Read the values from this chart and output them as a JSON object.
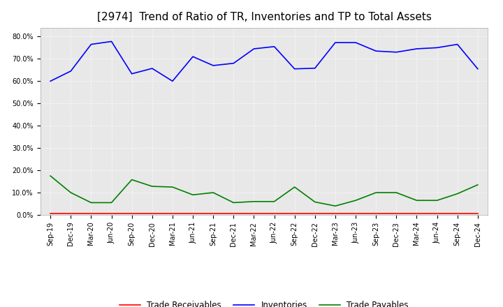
{
  "title": "[2974]  Trend of Ratio of TR, Inventories and TP to Total Assets",
  "x_labels": [
    "Sep-19",
    "Dec-19",
    "Mar-20",
    "Jun-20",
    "Sep-20",
    "Dec-20",
    "Mar-21",
    "Jun-21",
    "Sep-21",
    "Dec-21",
    "Mar-22",
    "Jun-22",
    "Sep-22",
    "Dec-22",
    "Mar-23",
    "Jun-23",
    "Sep-23",
    "Dec-23",
    "Mar-24",
    "Jun-24",
    "Sep-24",
    "Dec-24"
  ],
  "trade_receivables": [
    0.005,
    0.005,
    0.005,
    0.005,
    0.005,
    0.005,
    0.005,
    0.005,
    0.005,
    0.005,
    0.005,
    0.005,
    0.005,
    0.005,
    0.005,
    0.005,
    0.005,
    0.005,
    0.005,
    0.005,
    0.005,
    0.005
  ],
  "inventories": [
    0.6,
    0.645,
    0.765,
    0.778,
    0.633,
    0.657,
    0.6,
    0.71,
    0.67,
    0.68,
    0.745,
    0.755,
    0.655,
    0.658,
    0.773,
    0.773,
    0.735,
    0.73,
    0.745,
    0.75,
    0.765,
    0.655
  ],
  "trade_payables": [
    0.175,
    0.1,
    0.055,
    0.055,
    0.158,
    0.128,
    0.125,
    0.09,
    0.1,
    0.055,
    0.06,
    0.06,
    0.125,
    0.058,
    0.04,
    0.065,
    0.1,
    0.1,
    0.065,
    0.065,
    0.095,
    0.135
  ],
  "tr_color": "#ff0000",
  "inv_color": "#0000ff",
  "tp_color": "#008000",
  "ylim": [
    0.0,
    0.84
  ],
  "yticks": [
    0.0,
    0.1,
    0.2,
    0.3,
    0.4,
    0.5,
    0.6,
    0.7,
    0.8
  ],
  "background_color": "#ffffff",
  "plot_bg_color": "#e8e8e8",
  "grid_color": "#ffffff",
  "title_fontsize": 11,
  "tick_fontsize": 7,
  "legend_labels": [
    "Trade Receivables",
    "Inventories",
    "Trade Payables"
  ]
}
